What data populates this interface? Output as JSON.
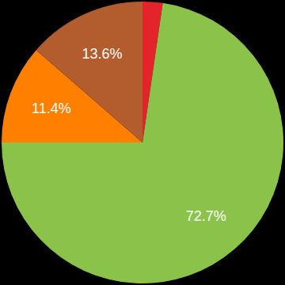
{
  "chart_data": {
    "type": "pie",
    "values": [
      2.3,
      72.7,
      11.4,
      13.6
    ],
    "value_labels": [
      null,
      "72.7%",
      "11.4%",
      "13.6%"
    ],
    "colors": [
      "#e3242b",
      "#8bc34a",
      "#ff8000",
      "#b35c2e"
    ],
    "data_labels": true
  }
}
